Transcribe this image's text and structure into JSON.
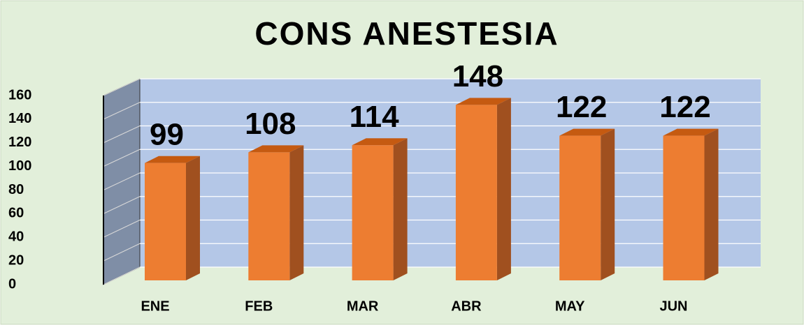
{
  "chart_data": {
    "type": "bar3d",
    "title": "CONS ANESTESIA",
    "categories": [
      "ENE",
      "FEB",
      "MAR",
      "ABR",
      "MAY",
      "JUN"
    ],
    "values": [
      99,
      108,
      114,
      148,
      122,
      122
    ],
    "color": "#ed7d31",
    "ylim": [
      0,
      160
    ],
    "yticks": [
      0,
      20,
      40,
      60,
      80,
      100,
      120,
      140,
      160
    ],
    "grid": true
  }
}
